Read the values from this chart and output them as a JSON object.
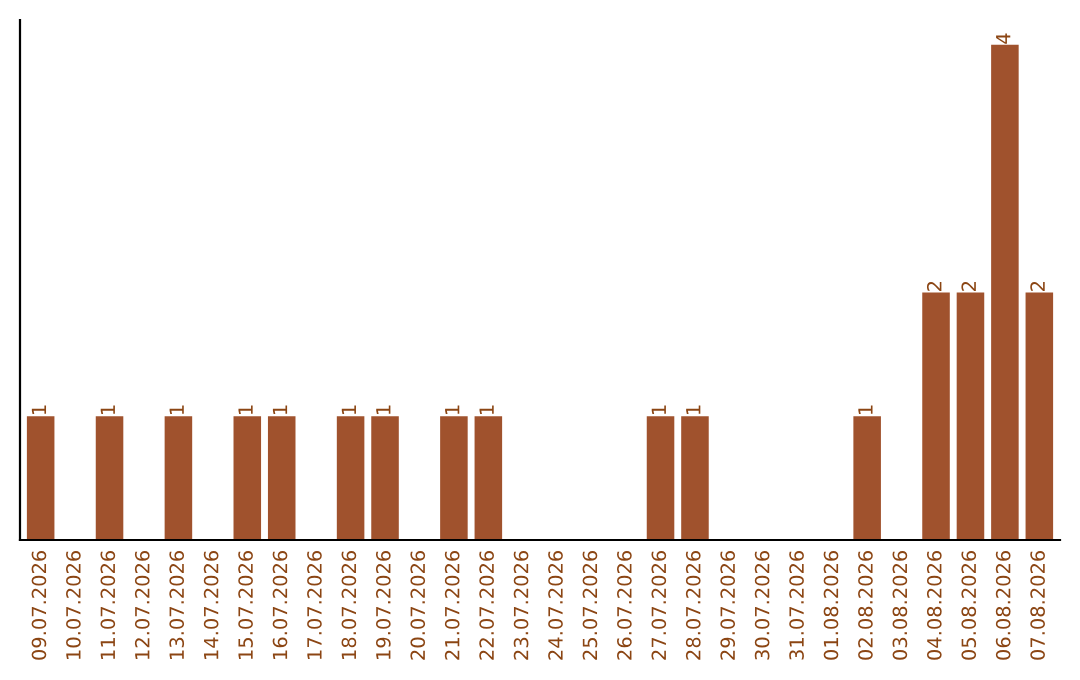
{
  "chart_data": {
    "type": "bar",
    "categories": [
      "09.07.2026",
      "10.07.2026",
      "11.07.2026",
      "12.07.2026",
      "13.07.2026",
      "14.07.2026",
      "15.07.2026",
      "16.07.2026",
      "17.07.2026",
      "18.07.2026",
      "19.07.2026",
      "20.07.2026",
      "21.07.2026",
      "22.07.2026",
      "23.07.2026",
      "24.07.2026",
      "25.07.2026",
      "26.07.2026",
      "27.07.2026",
      "28.07.2026",
      "29.07.2026",
      "30.07.2026",
      "31.07.2026",
      "01.08.2026",
      "02.08.2026",
      "03.08.2026",
      "04.08.2026",
      "05.08.2026",
      "06.08.2026",
      "07.08.2026"
    ],
    "values": [
      1,
      0,
      1,
      0,
      1,
      0,
      1,
      1,
      0,
      1,
      1,
      0,
      1,
      1,
      0,
      0,
      0,
      0,
      1,
      1,
      0,
      0,
      0,
      0,
      1,
      0,
      2,
      2,
      4,
      2
    ],
    "value_labels": [
      "1",
      null,
      "1",
      null,
      "1",
      null,
      "1",
      "1",
      null,
      "1",
      "1",
      null,
      "1",
      "1",
      null,
      null,
      null,
      null,
      "1",
      "1",
      null,
      null,
      null,
      null,
      "1",
      null,
      "2",
      "2",
      "4",
      "2"
    ],
    "color": "#a0522d",
    "grid": false,
    "legend": false
  }
}
